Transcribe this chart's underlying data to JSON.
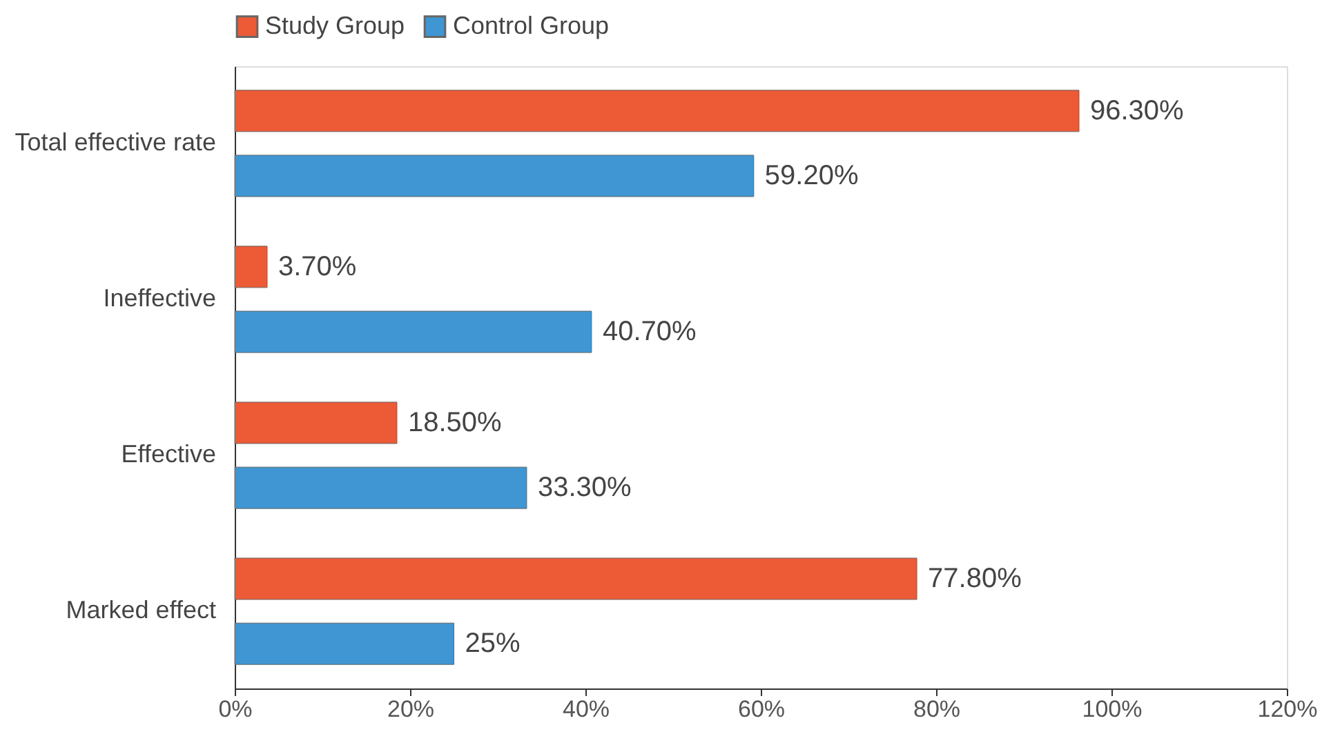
{
  "chart_data": {
    "type": "bar",
    "orientation": "horizontal",
    "categories": [
      "Total effective rate",
      "Ineffective",
      "Effective",
      "Marked effect"
    ],
    "series": [
      {
        "name": "Study Group",
        "color": "#ec5a36",
        "values": [
          96.3,
          3.7,
          18.5,
          77.8
        ],
        "value_labels": [
          "96.30%",
          "3.70%",
          "18.50%",
          "77.80%"
        ]
      },
      {
        "name": "Control Group",
        "color": "#3f96d2",
        "values": [
          59.2,
          40.7,
          33.3,
          25
        ],
        "value_labels": [
          "59.20%",
          "40.70%",
          "33.30%",
          "25%"
        ]
      }
    ],
    "xlim": [
      0,
      120
    ],
    "xticks": [
      {
        "value": 0,
        "label": "0%"
      },
      {
        "value": 20,
        "label": "20%"
      },
      {
        "value": 40,
        "label": "40%"
      },
      {
        "value": 60,
        "label": "60%"
      },
      {
        "value": 80,
        "label": "80%"
      },
      {
        "value": 100,
        "label": "100%"
      },
      {
        "value": 120,
        "label": "120%"
      }
    ],
    "grid": false,
    "legend": "top"
  }
}
